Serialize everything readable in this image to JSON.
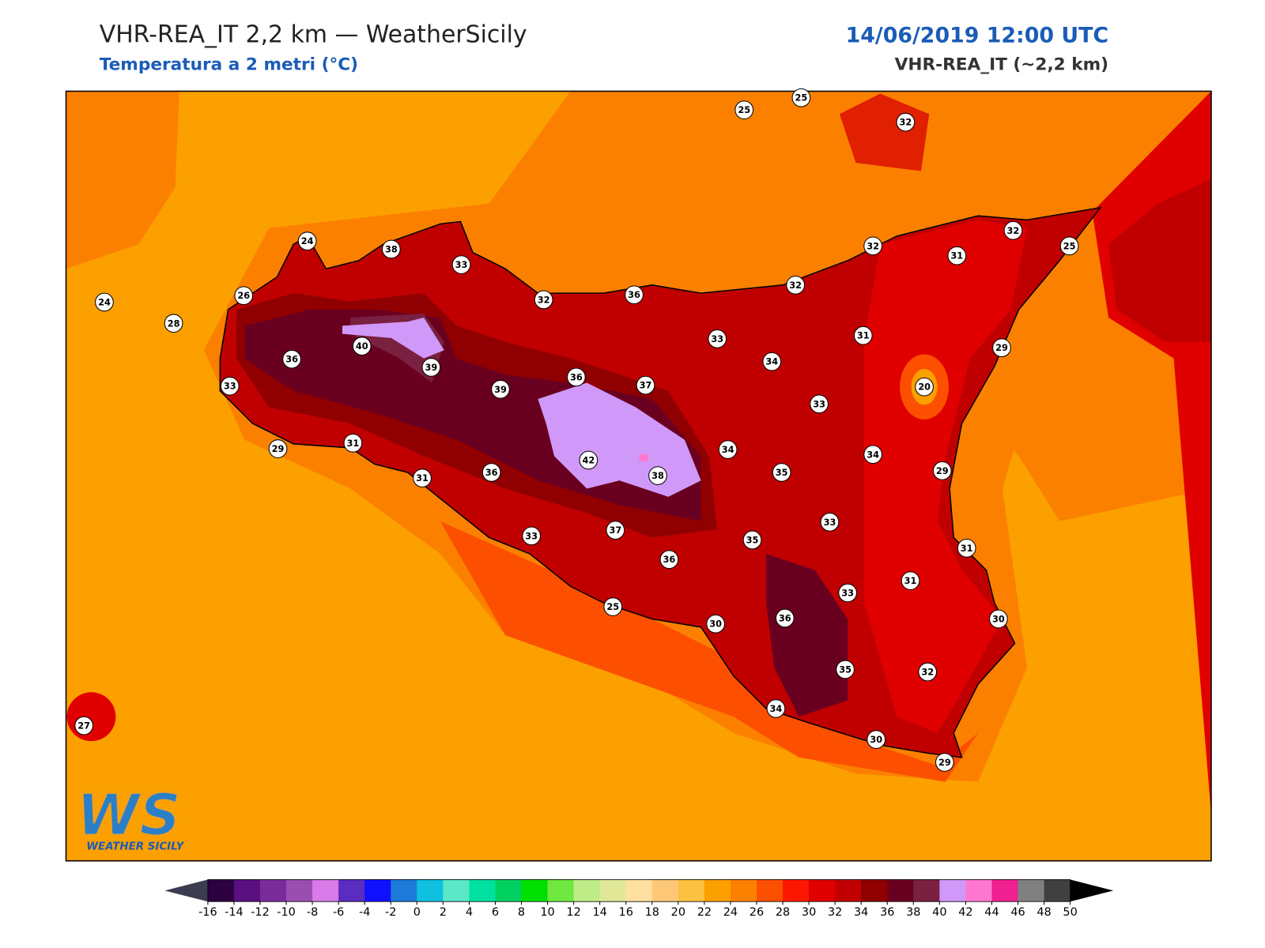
{
  "header": {
    "title": "VHR-REA_IT 2,2 km — WeatherSicily",
    "subtitle": "Temperatura a 2 metri (°C)",
    "date": "14/06/2019 12:00 UTC",
    "model": "VHR-REA_IT (~2,2 km)"
  },
  "map": {
    "stations": [
      25,
      25,
      32,
      24,
      38,
      33,
      32,
      25,
      32,
      31,
      26,
      24,
      28,
      32,
      36,
      32,
      40,
      36,
      39,
      33,
      34,
      31,
      29,
      33,
      39,
      36,
      37,
      20,
      33,
      29,
      31,
      34,
      34,
      31,
      36,
      42,
      38,
      35,
      29,
      33,
      33,
      37,
      35,
      31,
      36,
      31,
      33,
      25,
      30,
      36,
      30,
      35,
      32,
      34,
      30,
      29,
      27
    ]
  },
  "colorbar": {
    "ticks": [
      -16,
      -14,
      -12,
      -10,
      -8,
      -6,
      -4,
      -2,
      0,
      2,
      4,
      6,
      8,
      10,
      12,
      14,
      16,
      18,
      20,
      22,
      24,
      26,
      28,
      30,
      32,
      34,
      36,
      38,
      40,
      42,
      44,
      46,
      48,
      50
    ],
    "colors": [
      "#2d0040",
      "#5a1080",
      "#7a2d9a",
      "#9a4fb0",
      "#d87ae8",
      "#5a2cc0",
      "#1010ff",
      "#1c7ad8",
      "#10c0e0",
      "#5ae8c8",
      "#00e0a0",
      "#00d060",
      "#00e000",
      "#70e840",
      "#c0ec88",
      "#e0e898",
      "#ffe0a0",
      "#fcc878",
      "#fcc040",
      "#fca000",
      "#fc8000",
      "#fc5000",
      "#fc1800",
      "#e00000",
      "#c00000",
      "#900000",
      "#6a0020",
      "#7a2040",
      "#d098f8",
      "#ff78d0",
      "#f02090",
      "#808080",
      "#404040"
    ],
    "under_color": "#3c3c50",
    "over_color": "#000000"
  },
  "logo": {
    "mark": "WS",
    "name": "WEATHER SICILY"
  }
}
